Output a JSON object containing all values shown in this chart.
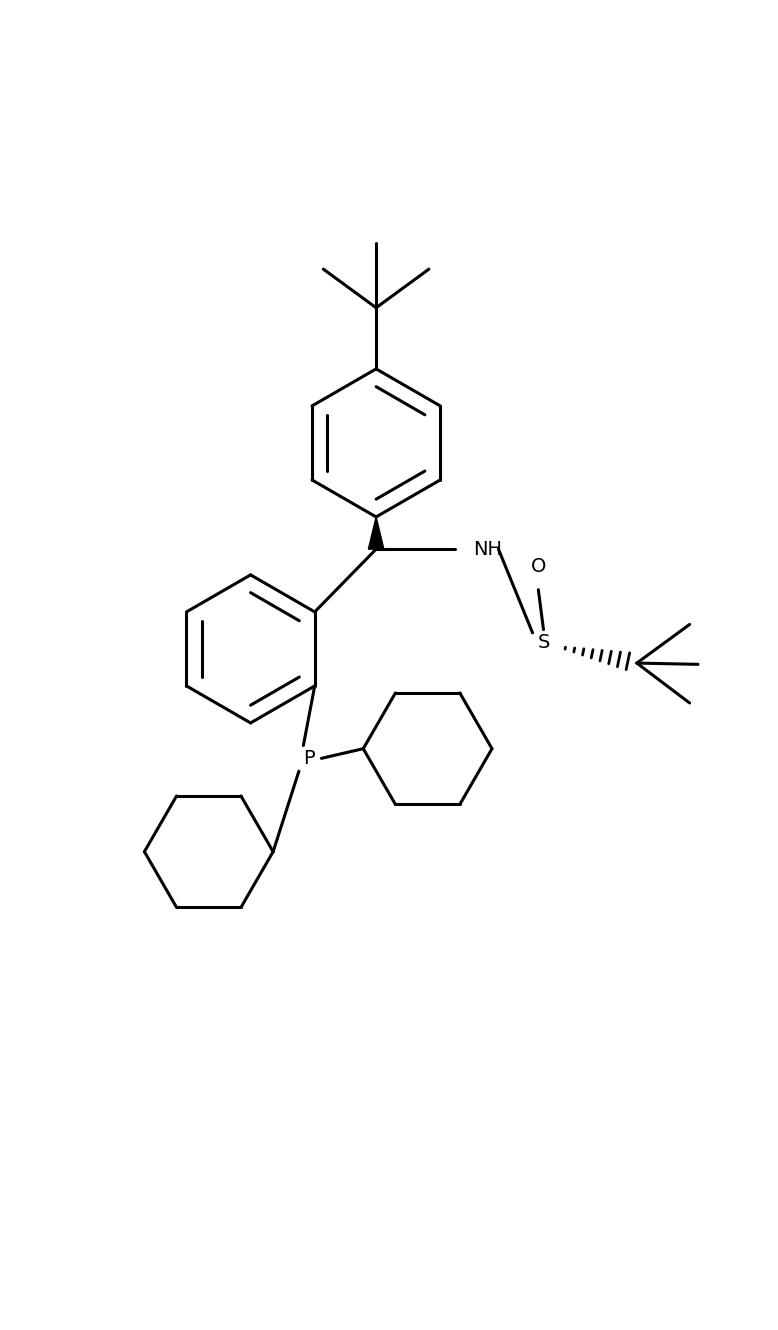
{
  "background_color": "#ffffff",
  "line_color": "#000000",
  "line_width": 2.2,
  "figsize": [
    7.78,
    13.3
  ],
  "dpi": 100,
  "xlim": [
    -1.0,
    11.0
  ],
  "ylim": [
    0.0,
    17.5
  ]
}
